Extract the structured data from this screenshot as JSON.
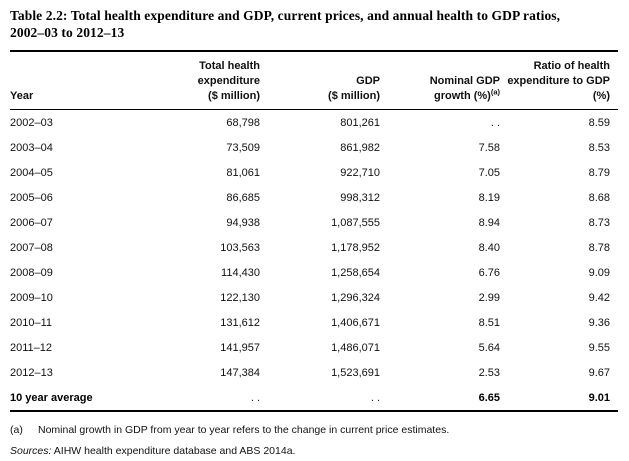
{
  "page": {
    "background_color": "#ffffff",
    "text_color": "#000000"
  },
  "title": {
    "lines": [
      "Table 2.2: Total health expenditure and GDP, current prices, and annual health to GDP ratios,",
      "2002–03 to 2012–13"
    ]
  },
  "table": {
    "headers": {
      "year": "Year",
      "col2_lines": [
        "Total health",
        "expenditure",
        "($ million)"
      ],
      "col3_lines": [
        "GDP",
        "($ million)"
      ],
      "col4_lines": [
        "Nominal GDP",
        "growth (%)"
      ],
      "col4_superscript": "(a)",
      "col5_lines": [
        "Ratio of health",
        "expenditure to GDP",
        "(%)"
      ]
    },
    "rows": [
      [
        "2002–03",
        "68,798",
        "801,261",
        ". .",
        "8.59"
      ],
      [
        "2003–04",
        "73,509",
        "861,982",
        "7.58",
        "8.53"
      ],
      [
        "2004–05",
        "81,061",
        "922,710",
        "7.05",
        "8.79"
      ],
      [
        "2005–06",
        "86,685",
        "998,312",
        "8.19",
        "8.68"
      ],
      [
        "2006–07",
        "94,938",
        "1,087,555",
        "8.94",
        "8.73"
      ],
      [
        "2007–08",
        "103,563",
        "1,178,952",
        "8.40",
        "8.78"
      ],
      [
        "2008–09",
        "114,430",
        "1,258,654",
        "6.76",
        "9.09"
      ],
      [
        "2009–10",
        "122,130",
        "1,296,324",
        "2.99",
        "9.42"
      ],
      [
        "2010–11",
        "131,612",
        "1,406,671",
        "8.51",
        "9.36"
      ],
      [
        "2011–12",
        "141,957",
        "1,486,071",
        "5.64",
        "9.55"
      ],
      [
        "2012–13",
        "147,384",
        "1,523,691",
        "2.53",
        "9.67"
      ]
    ],
    "average_row": [
      "10 year average",
      ". .",
      ". .",
      "6.65",
      "9.01"
    ]
  },
  "footnote": {
    "marker": "(a)",
    "text": "Nominal growth in GDP from year to year refers to the change in current price estimates."
  },
  "sources": {
    "label": "Sources:",
    "text": "AIHW health expenditure database and ABS 2014a."
  }
}
